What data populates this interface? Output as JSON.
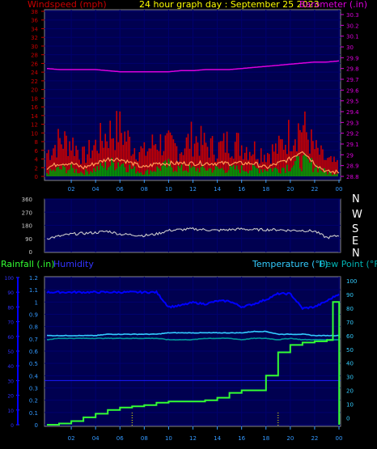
{
  "chart_data": [
    {
      "type": "bar",
      "title": "24 hour graph day : September 25 2023",
      "ylabel_left": "Windspeed (mph)",
      "ylabel_right": "Barometer (.in)",
      "left_ticks": [
        "0",
        "2",
        "4",
        "6",
        "8",
        "10",
        "12",
        "14",
        "16",
        "18",
        "20",
        "22",
        "24",
        "26",
        "28",
        "30",
        "32",
        "34",
        "36",
        "38"
      ],
      "left_range": [
        0,
        38
      ],
      "right_ticks": [
        "28.8",
        "28.9",
        "29",
        "29.1",
        "29.2",
        "29.3",
        "29.4",
        "29.5",
        "29.6",
        "29.7",
        "29.8",
        "29.9",
        "30",
        "30.1",
        "30.2",
        "30.3"
      ],
      "right_range": [
        28.8,
        30.3
      ],
      "x_ticks": [
        "02",
        "04",
        "06",
        "08",
        "10",
        "12",
        "14",
        "16",
        "18",
        "20",
        "22",
        "00"
      ],
      "colors": {
        "gust": "#cc0000",
        "speed": "#00a000",
        "average": "#ff9955",
        "barometer": "#dd00dd",
        "title": "#ffff00"
      },
      "series": [
        {
          "name": "Gust",
          "x": [
            0,
            1,
            2,
            3,
            4,
            5,
            6,
            7,
            8,
            9,
            10,
            11,
            12,
            13,
            14,
            15,
            16,
            17,
            18,
            19,
            20,
            21,
            22,
            23,
            24
          ],
          "values": [
            6,
            9,
            9,
            5,
            8,
            11,
            12,
            8,
            6,
            9,
            8,
            7,
            10,
            8,
            7,
            9,
            8,
            7,
            6,
            7,
            11,
            13,
            7,
            4,
            3
          ]
        },
        {
          "name": "Speed",
          "x": [
            0,
            1,
            2,
            3,
            4,
            5,
            6,
            7,
            8,
            9,
            10,
            11,
            12,
            13,
            14,
            15,
            16,
            17,
            18,
            19,
            20,
            21,
            22,
            23,
            24
          ],
          "values": [
            1,
            2,
            2,
            1,
            2,
            3,
            4,
            2,
            1,
            2,
            3,
            2,
            2,
            2,
            2,
            2,
            2,
            2,
            2,
            2,
            3,
            4,
            3,
            1,
            1
          ]
        },
        {
          "name": "Average",
          "x": [
            0,
            1,
            2,
            3,
            4,
            5,
            6,
            7,
            8,
            9,
            10,
            11,
            12,
            13,
            14,
            15,
            16,
            17,
            18,
            19,
            20,
            21,
            22,
            23,
            24
          ],
          "values": [
            2,
            3,
            3,
            2,
            3,
            4,
            4,
            3,
            2,
            3,
            3,
            3,
            3,
            3,
            3,
            3,
            3,
            3,
            2,
            3,
            4,
            6,
            3,
            1,
            1
          ]
        },
        {
          "name": "Barometer",
          "x": [
            0,
            1,
            2,
            3,
            4,
            5,
            6,
            7,
            8,
            9,
            10,
            11,
            12,
            13,
            14,
            15,
            16,
            17,
            18,
            19,
            20,
            21,
            22,
            23,
            24
          ],
          "values": [
            29.8,
            29.79,
            29.79,
            29.79,
            29.79,
            29.78,
            29.77,
            29.77,
            29.77,
            29.77,
            29.77,
            29.78,
            29.78,
            29.79,
            29.79,
            29.79,
            29.8,
            29.81,
            29.82,
            29.83,
            29.84,
            29.85,
            29.86,
            29.86,
            29.87
          ]
        }
      ]
    },
    {
      "type": "line",
      "left_ticks": [
        "0",
        "90",
        "180",
        "270",
        "360"
      ],
      "left_range": [
        0,
        360
      ],
      "direction_labels": [
        "N",
        "W",
        "S",
        "E",
        "N"
      ],
      "x_ticks": [
        "02",
        "04",
        "06",
        "08",
        "10",
        "12",
        "14",
        "16",
        "18",
        "20",
        "22",
        "00"
      ],
      "series": [
        {
          "name": "Direction",
          "x": [
            0,
            1,
            2,
            3,
            4,
            5,
            6,
            7,
            8,
            9,
            10,
            11,
            12,
            13,
            14,
            15,
            16,
            17,
            18,
            19,
            20,
            21,
            22,
            23,
            24
          ],
          "values": [
            90,
            105,
            120,
            125,
            130,
            140,
            120,
            115,
            110,
            120,
            145,
            150,
            155,
            150,
            145,
            150,
            155,
            150,
            150,
            150,
            145,
            145,
            140,
            95,
            110
          ]
        }
      ]
    },
    {
      "type": "line",
      "label_rainfall": "Rainfall (.in)",
      "label_humidity": "Humidity",
      "label_temperature": "Temperature (°F)",
      "label_dewpoint": "Dew Point (°F)",
      "left_outer_ticks": [
        "0",
        "10",
        "20",
        "30",
        "40",
        "50",
        "60",
        "70",
        "80",
        "90",
        "100"
      ],
      "left_outer_range": [
        0,
        100
      ],
      "left_inner_ticks": [
        "0",
        "0.1",
        "0.2",
        "0.3",
        "0.4",
        "0.5",
        "0.6",
        "0.7",
        "0.8",
        "0.9",
        "1",
        "1.1",
        "1.2"
      ],
      "left_inner_range": [
        0,
        1.2
      ],
      "right_ticks": [
        "0",
        "10",
        "20",
        "30",
        "40",
        "50",
        "60",
        "70",
        "80",
        "90",
        "100"
      ],
      "right_range": [
        -5,
        100
      ],
      "x_ticks": [
        "02",
        "04",
        "06",
        "08",
        "10",
        "12",
        "14",
        "16",
        "18",
        "20",
        "22",
        "00"
      ],
      "colors": {
        "rainfall": "#33ff33",
        "humidity": "#0000ff",
        "temperature": "#33ccff",
        "dewpoint": "#009999"
      },
      "series": [
        {
          "name": "Rainfall",
          "x": [
            0,
            1,
            2,
            3,
            4,
            5,
            6,
            7,
            8,
            9,
            10,
            11,
            12,
            13,
            14,
            15,
            16,
            17,
            18,
            19,
            20,
            21,
            22,
            23,
            23.5,
            24,
            24.01
          ],
          "values": [
            0,
            0.01,
            0.03,
            0.06,
            0.09,
            0.12,
            0.14,
            0.15,
            0.16,
            0.18,
            0.19,
            0.19,
            0.19,
            0.2,
            0.22,
            0.26,
            0.28,
            0.28,
            0.4,
            0.59,
            0.65,
            0.67,
            0.68,
            0.69,
            1.0,
            1.0,
            0
          ]
        },
        {
          "name": "Humidity",
          "x": [
            0,
            1,
            2,
            3,
            4,
            5,
            6,
            7,
            8,
            9,
            10,
            11,
            12,
            13,
            14,
            15,
            16,
            17,
            18,
            19,
            20,
            21,
            22,
            23,
            24
          ],
          "values": [
            90,
            90,
            90,
            90,
            90,
            90,
            90,
            90,
            90,
            90,
            80,
            81,
            83,
            82,
            84,
            84,
            80,
            82,
            85,
            89,
            89,
            79,
            80,
            84,
            89
          ]
        },
        {
          "name": "Temperature",
          "x": [
            0,
            1,
            2,
            3,
            4,
            5,
            6,
            7,
            8,
            9,
            10,
            11,
            12,
            13,
            14,
            15,
            16,
            17,
            18,
            19,
            20,
            21,
            22,
            23,
            24
          ],
          "values": [
            60,
            60,
            60,
            60,
            60,
            61,
            61,
            61,
            61,
            61,
            62,
            62,
            62,
            62,
            62,
            62,
            62,
            63,
            63,
            61,
            61,
            61,
            60,
            60,
            60
          ]
        },
        {
          "name": "Dew Point",
          "x": [
            0,
            1,
            2,
            3,
            4,
            5,
            6,
            7,
            8,
            9,
            10,
            11,
            12,
            13,
            14,
            15,
            16,
            17,
            18,
            19,
            20,
            21,
            22,
            23,
            24
          ],
          "values": [
            57,
            58,
            58,
            58,
            58,
            58,
            58,
            58,
            58,
            58,
            57,
            57,
            57,
            58,
            58,
            58,
            57,
            58,
            58,
            57,
            58,
            57,
            57,
            57,
            57
          ]
        }
      ]
    }
  ]
}
